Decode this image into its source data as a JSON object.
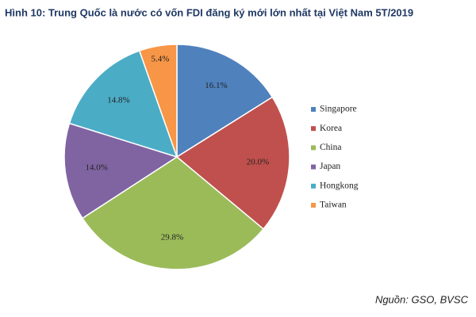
{
  "chart_data": {
    "type": "pie",
    "title": "Hình 10: Trung Quốc là nước có vốn FDI đăng ký mới lớn nhất tại Việt Nam 5T/2019",
    "categories": [
      "Singapore",
      "Korea",
      "China",
      "Japan",
      "Hongkong",
      "Taiwan"
    ],
    "values": [
      16.1,
      20.0,
      29.8,
      14.0,
      14.8,
      5.4
    ],
    "value_labels": [
      "16.1%",
      "20.0%",
      "29.8%",
      "14.0%",
      "14.8%",
      "5.4%"
    ],
    "colors": [
      "#4f81bd",
      "#c0504d",
      "#9bbb59",
      "#8064a2",
      "#4bacc6",
      "#f79646"
    ],
    "legend": "right",
    "source": "Nguồn: GSO, BVSC"
  }
}
